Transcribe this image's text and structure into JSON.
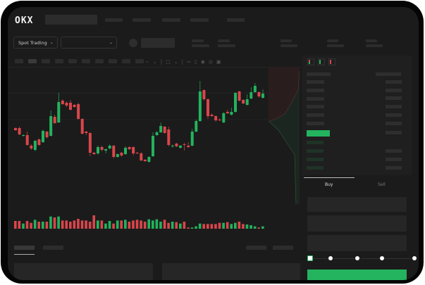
{
  "header": {
    "logo": "OKX"
  },
  "toolbar": {
    "market_dropdown": "Spot Trading"
  },
  "trade_panel": {
    "tabs": [
      "Buy",
      "Sell"
    ],
    "active_tab": "Buy",
    "slider_percent": 0
  },
  "colors": {
    "up": "#22b35e",
    "down": "#d9464b",
    "accent": "#24b35e",
    "background": "#1b1b1b"
  },
  "icons": [
    "chevron-down-icon",
    "line-chart-icon",
    "ruler-icon",
    "camera-icon",
    "settings-icon",
    "fullscreen-icon",
    "orderbook-both-icon",
    "orderbook-buy-icon",
    "orderbook-sell-icon"
  ],
  "chart_data": {
    "type": "candlestick",
    "candles": [
      [
        118,
        119,
        114,
        115
      ],
      [
        118,
        120,
        108,
        109
      ],
      [
        107,
        109,
        106,
        108
      ],
      [
        108,
        113,
        93,
        94
      ],
      [
        93,
        95,
        87,
        89
      ],
      [
        87,
        101,
        85,
        100
      ],
      [
        102,
        103,
        93,
        94
      ],
      [
        98,
        116,
        97,
        114
      ],
      [
        113,
        114,
        103,
        105
      ],
      [
        107,
        143,
        106,
        135
      ],
      [
        134,
        137,
        124,
        125
      ],
      [
        126,
        168,
        125,
        155
      ],
      [
        157,
        159,
        151,
        152
      ],
      [
        154,
        156,
        148,
        150
      ],
      [
        154,
        158,
        143,
        144
      ],
      [
        151,
        152,
        147,
        148
      ],
      [
        152,
        154,
        130,
        131
      ],
      [
        131,
        132,
        109,
        110
      ],
      [
        113,
        114,
        108,
        111
      ],
      [
        111,
        112,
        78,
        83
      ],
      [
        83,
        84,
        80,
        81
      ],
      [
        82,
        93,
        80,
        91
      ],
      [
        91,
        93,
        85,
        87
      ],
      [
        86,
        89,
        82,
        88
      ],
      [
        89,
        95,
        88,
        93
      ],
      [
        93,
        94,
        75,
        77
      ],
      [
        77,
        82,
        76,
        81
      ],
      [
        83,
        84,
        77,
        79
      ],
      [
        81,
        92,
        80,
        90
      ],
      [
        91,
        92,
        87,
        88
      ],
      [
        91,
        92,
        79,
        82
      ],
      [
        83,
        84,
        81,
        82
      ],
      [
        82,
        84,
        71,
        72
      ],
      [
        73,
        74,
        70,
        71
      ],
      [
        70,
        78,
        69,
        77
      ],
      [
        78,
        112,
        77,
        107
      ],
      [
        108,
        114,
        107,
        112
      ],
      [
        112,
        126,
        111,
        121
      ],
      [
        120,
        121,
        110,
        111
      ],
      [
        116,
        120,
        92,
        94
      ],
      [
        92,
        95,
        90,
        93
      ],
      [
        96,
        97,
        91,
        92
      ],
      [
        90,
        94,
        89,
        93
      ],
      [
        95,
        97,
        86,
        94
      ],
      [
        93,
        98,
        90,
        91
      ],
      [
        93,
        117,
        92,
        113
      ],
      [
        113,
        130,
        112,
        128
      ],
      [
        128,
        185,
        127,
        170
      ],
      [
        172,
        173,
        157,
        159
      ],
      [
        159,
        160,
        131,
        135
      ],
      [
        137,
        139,
        134,
        135
      ],
      [
        135,
        136,
        127,
        129
      ],
      [
        130,
        132,
        128,
        129
      ],
      [
        126,
        141,
        125,
        139
      ],
      [
        141,
        144,
        138,
        139
      ],
      [
        137,
        147,
        136,
        141
      ],
      [
        141,
        169,
        140,
        168
      ],
      [
        170,
        171,
        156,
        157
      ],
      [
        158,
        159,
        152,
        153
      ],
      [
        151,
        166,
        150,
        159
      ],
      [
        160,
        176,
        159,
        169
      ],
      [
        169,
        182,
        168,
        178
      ],
      [
        169,
        170,
        161,
        163
      ],
      [
        161,
        173,
        160,
        167
      ]
    ],
    "candle_format": [
      "open",
      "high",
      "low",
      "close"
    ],
    "volumes": [
      33,
      33,
      22,
      33,
      25,
      38,
      30,
      30,
      30,
      52,
      48,
      52,
      35,
      35,
      30,
      35,
      42,
      35,
      35,
      30,
      57,
      35,
      35,
      22,
      33,
      22,
      35,
      35,
      38,
      30,
      35,
      38,
      35,
      30,
      40,
      35,
      40,
      30,
      38,
      25,
      30,
      28,
      22,
      30,
      5,
      5,
      10,
      22,
      20,
      20,
      20,
      20,
      25,
      25,
      28,
      20,
      25,
      30,
      20,
      18,
      15,
      10,
      5,
      10
    ]
  }
}
